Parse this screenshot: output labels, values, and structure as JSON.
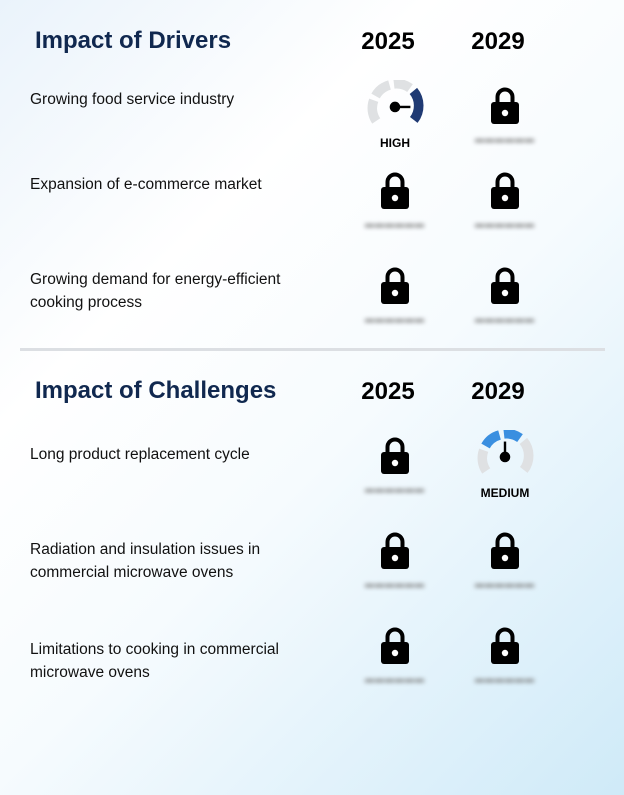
{
  "drivers": {
    "title": "Impact of Drivers",
    "years": [
      "2025",
      "2029"
    ],
    "rows": [
      {
        "label": "Growing food service industry",
        "y2025": {
          "type": "gauge",
          "level": "HIGH",
          "color": "#1f3a73"
        },
        "y2029": {
          "type": "locked"
        }
      },
      {
        "label": "Expansion of e-commerce market",
        "y2025": {
          "type": "locked"
        },
        "y2029": {
          "type": "locked"
        }
      },
      {
        "label": "Growing demand for energy-efficient cooking process",
        "y2025": {
          "type": "locked"
        },
        "y2029": {
          "type": "locked"
        }
      }
    ]
  },
  "challenges": {
    "title": "Impact of Challenges",
    "years": [
      "2025",
      "2029"
    ],
    "rows": [
      {
        "label": "Long product replacement cycle",
        "y2025": {
          "type": "locked"
        },
        "y2029": {
          "type": "gauge",
          "level": "MEDIUM",
          "color": "#3a8fe0"
        }
      },
      {
        "label": "Radiation and insulation issues in commercial microwave ovens",
        "y2025": {
          "type": "locked"
        },
        "y2029": {
          "type": "locked"
        }
      },
      {
        "label": "Limitations to cooking in commercial microwave ovens",
        "y2025": {
          "type": "locked"
        },
        "y2029": {
          "type": "locked"
        }
      }
    ]
  },
  "icons": {
    "locked": "lock-icon",
    "gauge": "gauge-icon"
  }
}
